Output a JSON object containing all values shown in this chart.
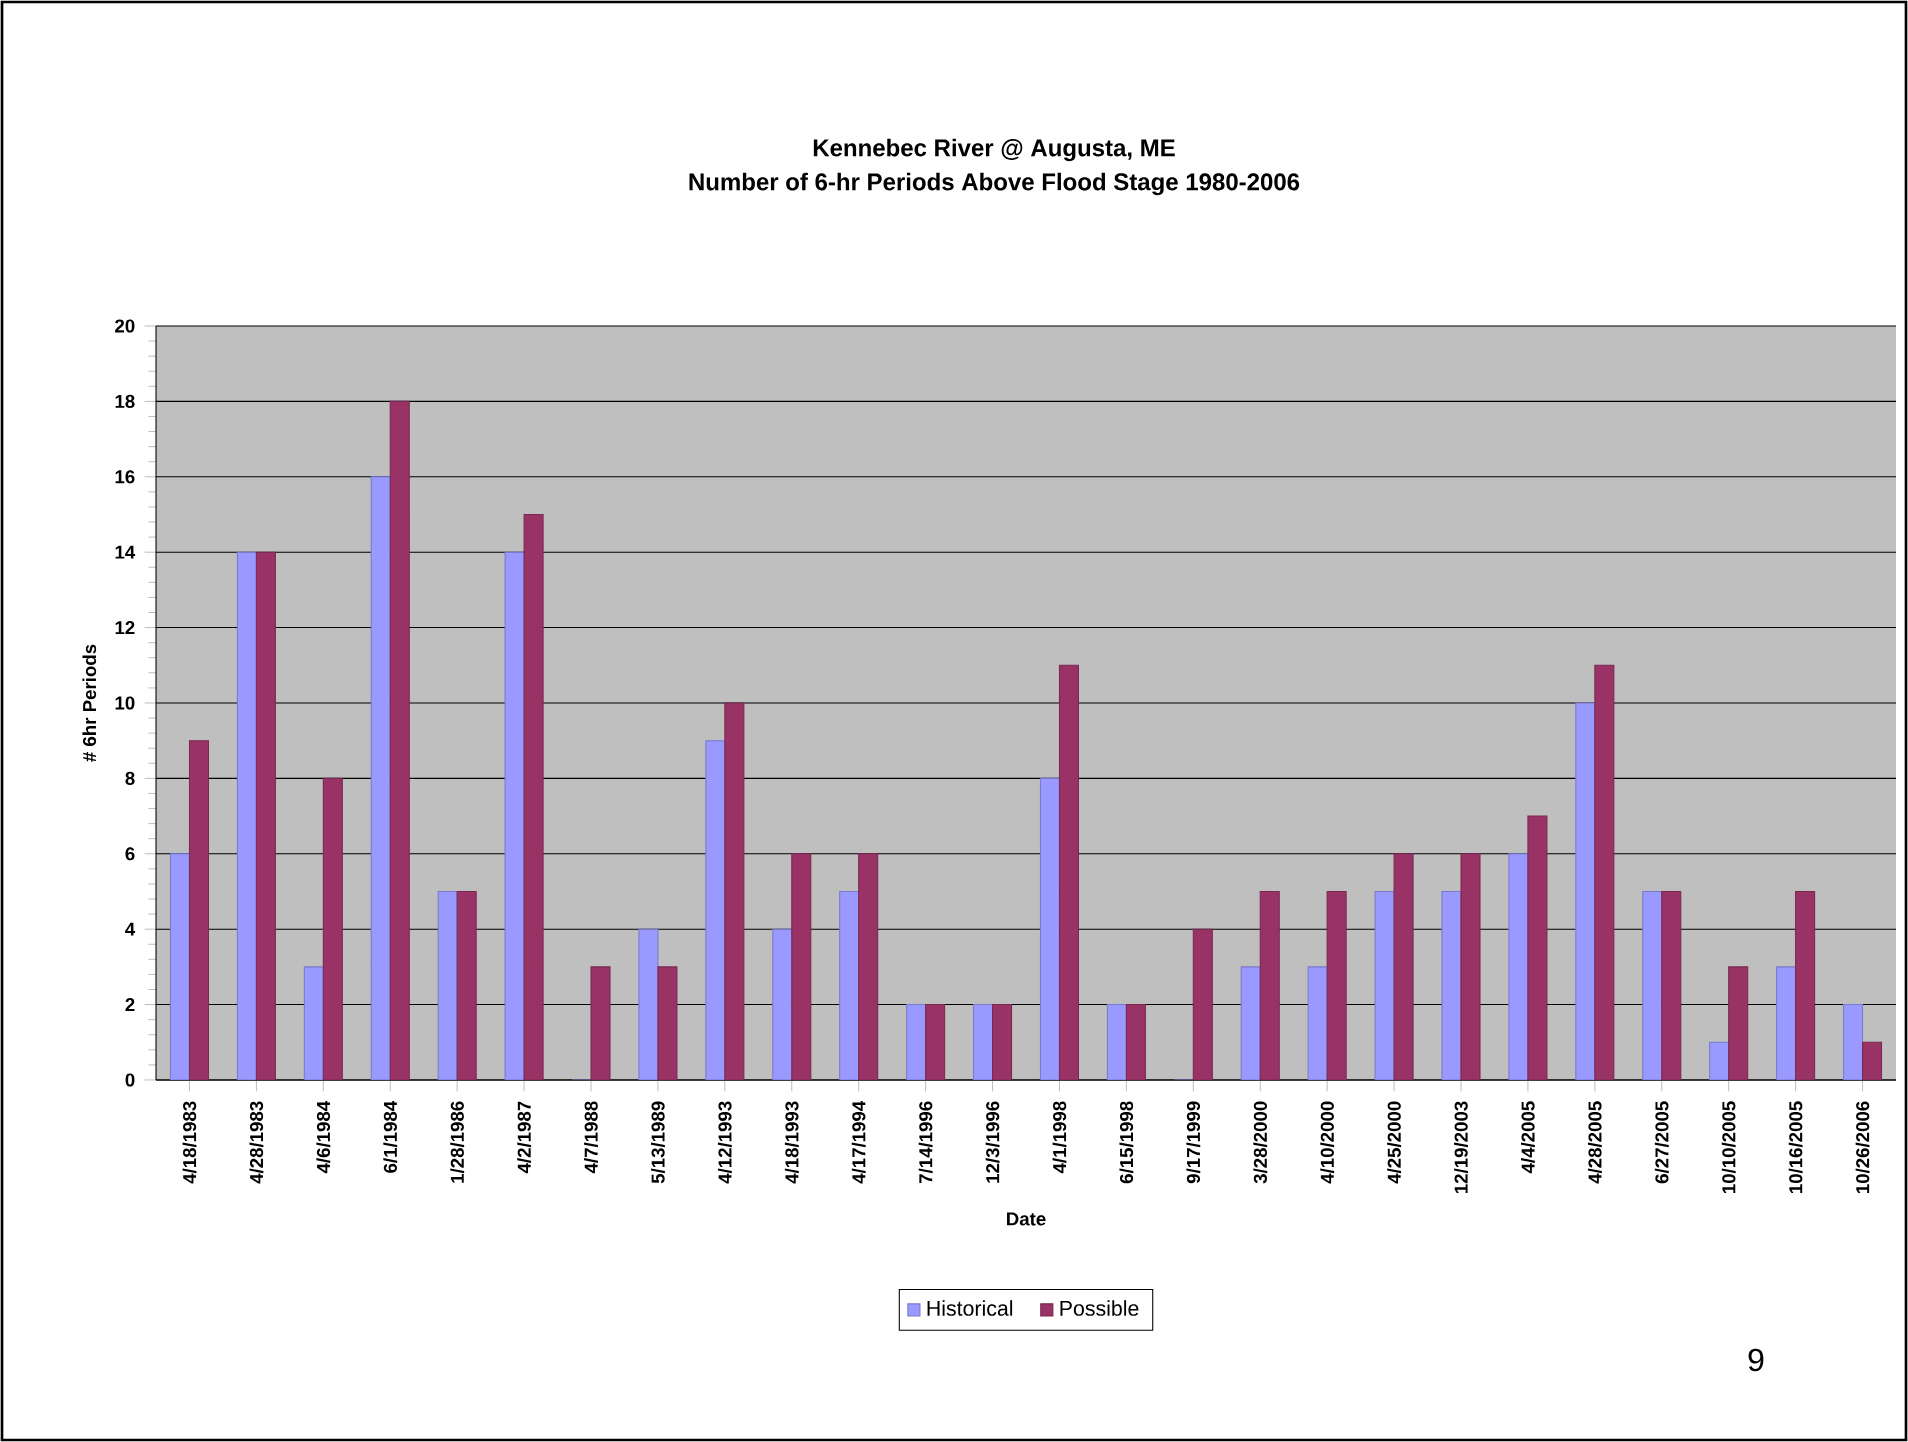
{
  "chart_data": {
    "type": "bar",
    "title": "Kennebec River @ Augusta, ME",
    "subtitle": "Number of 6-hr Periods Above Flood Stage 1980-2006",
    "xlabel": "Date",
    "ylabel": "# 6hr Periods",
    "categories": [
      "4/18/1983",
      "4/28/1983",
      "4/6/1984",
      "6/1/1984",
      "1/28/1986",
      "4/2/1987",
      "4/7/1988",
      "5/13/1989",
      "4/12/1993",
      "4/18/1993",
      "4/17/1994",
      "7/14/1996",
      "12/3/1996",
      "4/1/1998",
      "6/15/1998",
      "9/17/1999",
      "3/28/2000",
      "4/10/2000",
      "4/25/2000",
      "12/19/2003",
      "4/4/2005",
      "4/28/2005",
      "6/27/2005",
      "10/10/2005",
      "10/16/2005",
      "10/26/2006"
    ],
    "series": [
      {
        "name": "Historical",
        "color": "#9999ff",
        "values": [
          6,
          14,
          3,
          16,
          5,
          14,
          0,
          4,
          9,
          4,
          5,
          2,
          2,
          8,
          2,
          0,
          3,
          3,
          5,
          5,
          6,
          10,
          5,
          1,
          3,
          2
        ]
      },
      {
        "name": "Possible",
        "color": "#993366",
        "values": [
          9,
          14,
          8,
          18,
          5,
          15,
          3,
          3,
          10,
          6,
          6,
          2,
          2,
          11,
          2,
          4,
          5,
          5,
          6,
          6,
          7,
          11,
          5,
          3,
          5,
          1
        ]
      }
    ],
    "ylim": [
      0,
      20
    ],
    "yticks": [
      0,
      2,
      4,
      6,
      8,
      10,
      12,
      14,
      16,
      18,
      20
    ],
    "grid": "y",
    "legend": "bottom",
    "annotations": [
      "9"
    ]
  }
}
